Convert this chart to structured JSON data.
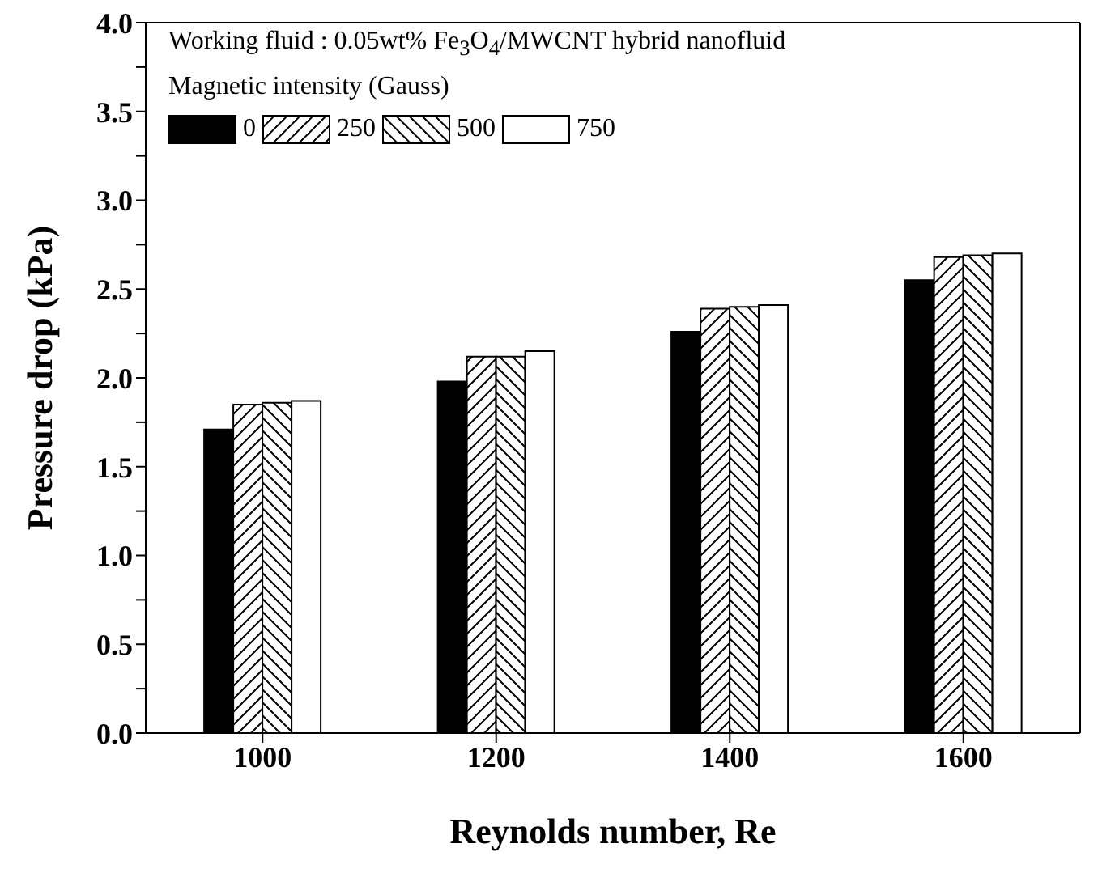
{
  "chart_data": {
    "type": "bar",
    "xlabel": "Reynolds number, Re",
    "ylabel": "Pressure drop (kPa)",
    "legend_title": "Magnetic intensity (Gauss)",
    "annotations": [
      "Working fluid : 0.05wt% Fe$_{3}$O$_{4}$/MWCNT hybrid nanofluid"
    ],
    "categories": [
      "1000",
      "1200",
      "1400",
      "1600"
    ],
    "series": [
      {
        "name": "0",
        "color": "#000000",
        "values": [
          1.71,
          1.98,
          2.26,
          2.55
        ]
      },
      {
        "name": "250",
        "color": "#000000",
        "values": [
          1.85,
          2.12,
          2.39,
          2.68
        ]
      },
      {
        "name": "500",
        "color": "#000000",
        "values": [
          1.86,
          2.12,
          2.4,
          2.69
        ]
      },
      {
        "name": "750",
        "color": "#ffffff",
        "values": [
          1.87,
          2.15,
          2.41,
          2.7
        ]
      }
    ],
    "ylim": [
      0,
      4
    ],
    "yticks": [
      {
        "value": 0,
        "label": "0.0"
      },
      {
        "value": 0.25,
        "label": null
      },
      {
        "value": 0.5,
        "label": "0.5"
      },
      {
        "value": 0.75,
        "label": null
      },
      {
        "value": 1,
        "label": "1.0"
      },
      {
        "value": 1.25,
        "label": null
      },
      {
        "value": 1.5,
        "label": "1.5"
      },
      {
        "value": 1.75,
        "label": null
      },
      {
        "value": 2,
        "label": "2.0"
      },
      {
        "value": 2.25,
        "label": null
      },
      {
        "value": 2.5,
        "label": "2.5"
      },
      {
        "value": 2.75,
        "label": null
      },
      {
        "value": 3,
        "label": "3.0"
      },
      {
        "value": 3.25,
        "label": null
      },
      {
        "value": 3.5,
        "label": "3.5"
      },
      {
        "value": 3.75,
        "label": null
      },
      {
        "value": 4,
        "label": "4.0"
      }
    ],
    "legend": "top left"
  }
}
